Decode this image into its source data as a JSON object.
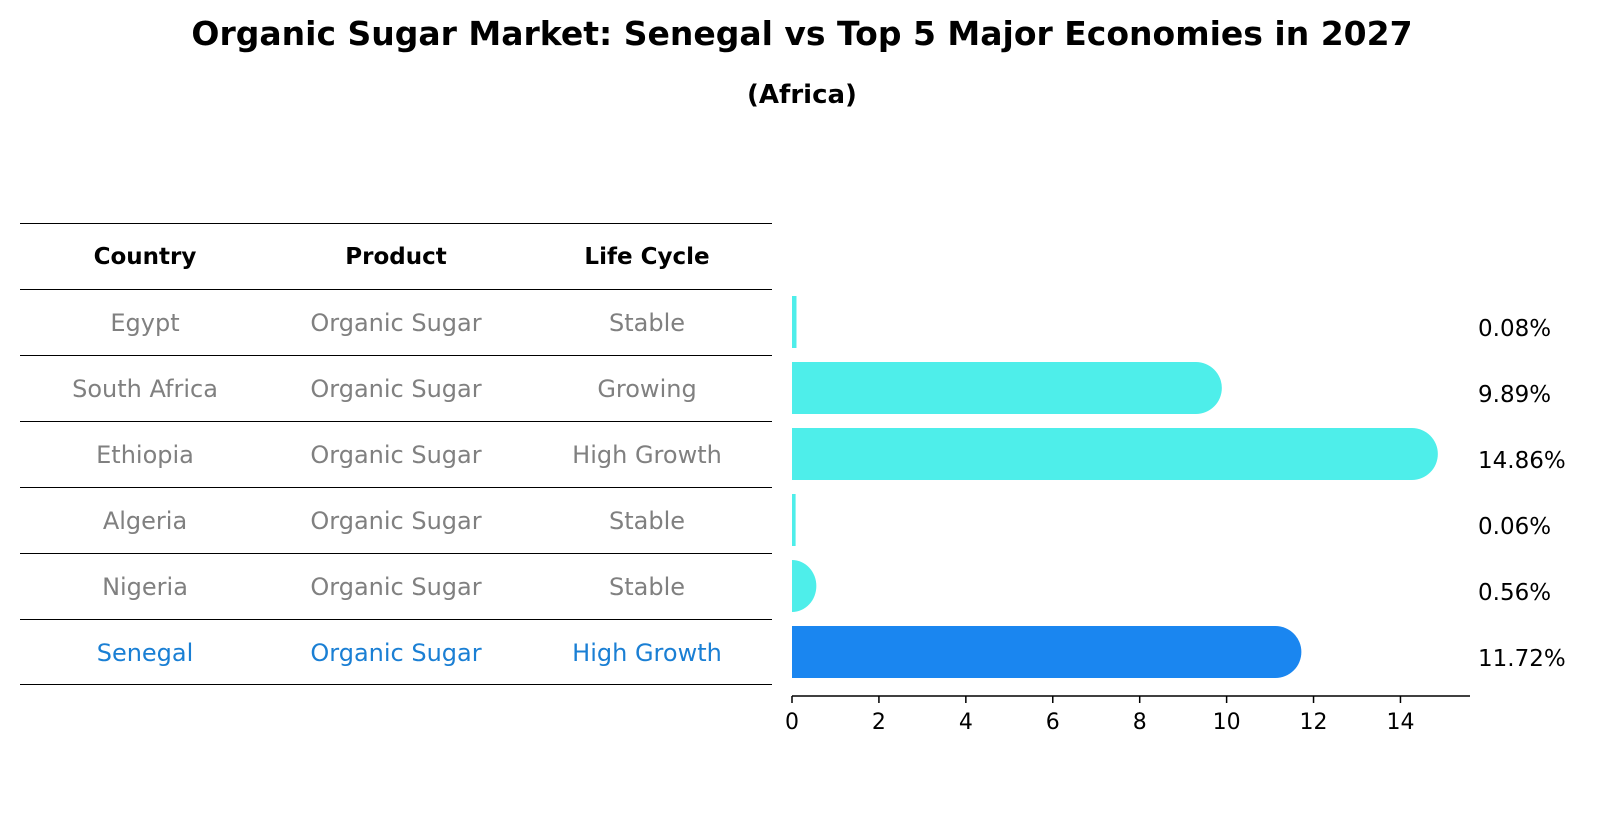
{
  "title": "Organic Sugar Market: Senegal vs Top 5 Major Economies in 2027",
  "subtitle": "(Africa)",
  "table": {
    "headers": [
      "Country",
      "Product",
      "Life Cycle"
    ],
    "rows": [
      [
        "Egypt",
        "Organic Sugar",
        "Stable"
      ],
      [
        "South Africa",
        "Organic Sugar",
        "Growing"
      ],
      [
        "Ethiopia",
        "Organic Sugar",
        "High Growth"
      ],
      [
        "Algeria",
        "Organic Sugar",
        "Stable"
      ],
      [
        "Nigeria",
        "Organic Sugar",
        "Stable"
      ],
      [
        "Senegal",
        "Organic Sugar",
        "High Growth"
      ]
    ],
    "highlight_row": 5
  },
  "colors": {
    "bar": "#4eeeea",
    "highlight_bar": "#1a86f0",
    "highlight_text": "#1a7fd4",
    "muted_text": "#808080"
  },
  "chart_data": {
    "type": "bar",
    "orientation": "horizontal",
    "categories": [
      "Egypt",
      "South Africa",
      "Ethiopia",
      "Algeria",
      "Nigeria",
      "Senegal"
    ],
    "values": [
      0.08,
      9.89,
      14.86,
      0.06,
      0.56,
      11.72
    ],
    "value_labels": [
      "0.08%",
      "9.89%",
      "14.86%",
      "0.06%",
      "0.56%",
      "11.72%"
    ],
    "xlim": [
      0,
      15.6
    ],
    "xticks": [
      "0",
      "2",
      "4",
      "6",
      "8",
      "10",
      "12",
      "14"
    ],
    "highlight": "Senegal",
    "grid": false
  }
}
